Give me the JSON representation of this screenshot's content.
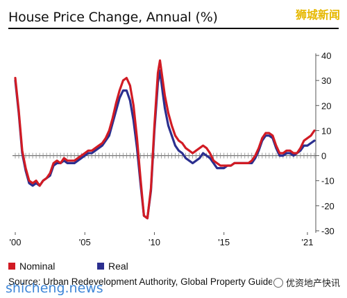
{
  "header": {
    "title": "House Price Change, Annual (%)",
    "watermark": "狮城新闻"
  },
  "footer": {
    "source": "Source: Urban Redevelopment Authority, Global Property Guide",
    "watermark_left": "shicheng.news",
    "watermark_right": "优资地产快讯"
  },
  "colors": {
    "nominal": "#d11b24",
    "real": "#2b2f8f",
    "axis": "#555555"
  },
  "chart_data": {
    "type": "line",
    "title": "House Price Change, Annual (%)",
    "xlabel": "",
    "ylabel": "",
    "xlim": [
      2000,
      2021.6
    ],
    "ylim": [
      -30,
      40
    ],
    "x_ticks": [
      {
        "x": 2000,
        "label": "'00"
      },
      {
        "x": 2005,
        "label": "'05"
      },
      {
        "x": 2010,
        "label": "'10"
      },
      {
        "x": 2015,
        "label": "'15"
      },
      {
        "x": 2021,
        "label": "'21"
      }
    ],
    "y_ticks": [
      40,
      30,
      20,
      10,
      0,
      -10,
      -20,
      -30
    ],
    "y_axis_side": "right",
    "legend": [
      {
        "name": "Nominal",
        "color": "#d11b24"
      },
      {
        "name": "Real",
        "color": "#2b2f8f"
      }
    ],
    "series": [
      {
        "name": "Nominal",
        "color": "#d11b24",
        "points": [
          [
            2000.0,
            31
          ],
          [
            2000.25,
            18
          ],
          [
            2000.5,
            2
          ],
          [
            2000.75,
            -5
          ],
          [
            2001.0,
            -10
          ],
          [
            2001.25,
            -11
          ],
          [
            2001.5,
            -10
          ],
          [
            2001.75,
            -12
          ],
          [
            2002.0,
            -10
          ],
          [
            2002.25,
            -9
          ],
          [
            2002.5,
            -7
          ],
          [
            2002.75,
            -3
          ],
          [
            2003.0,
            -2
          ],
          [
            2003.25,
            -3
          ],
          [
            2003.5,
            -1
          ],
          [
            2003.75,
            -2
          ],
          [
            2004.0,
            -2
          ],
          [
            2004.25,
            -2
          ],
          [
            2004.5,
            -1
          ],
          [
            2004.75,
            0
          ],
          [
            2005.0,
            1
          ],
          [
            2005.25,
            2
          ],
          [
            2005.5,
            2
          ],
          [
            2005.75,
            3
          ],
          [
            2006.0,
            4
          ],
          [
            2006.25,
            5
          ],
          [
            2006.5,
            7
          ],
          [
            2006.75,
            10
          ],
          [
            2007.0,
            15
          ],
          [
            2007.25,
            21
          ],
          [
            2007.5,
            26
          ],
          [
            2007.75,
            30
          ],
          [
            2008.0,
            31
          ],
          [
            2008.25,
            28
          ],
          [
            2008.5,
            20
          ],
          [
            2008.75,
            7
          ],
          [
            2009.0,
            -9
          ],
          [
            2009.25,
            -24
          ],
          [
            2009.5,
            -25
          ],
          [
            2009.75,
            -13
          ],
          [
            2010.0,
            12
          ],
          [
            2010.25,
            33
          ],
          [
            2010.4,
            38
          ],
          [
            2010.6,
            30
          ],
          [
            2010.75,
            24
          ],
          [
            2011.0,
            17
          ],
          [
            2011.25,
            12
          ],
          [
            2011.5,
            8
          ],
          [
            2011.75,
            6
          ],
          [
            2012.0,
            5
          ],
          [
            2012.25,
            3
          ],
          [
            2012.5,
            2
          ],
          [
            2012.75,
            1
          ],
          [
            2013.0,
            2
          ],
          [
            2013.25,
            3
          ],
          [
            2013.5,
            4
          ],
          [
            2013.75,
            3
          ],
          [
            2014.0,
            1
          ],
          [
            2014.25,
            -2
          ],
          [
            2014.5,
            -3
          ],
          [
            2014.75,
            -4
          ],
          [
            2015.0,
            -4
          ],
          [
            2015.25,
            -4
          ],
          [
            2015.5,
            -4
          ],
          [
            2015.75,
            -3
          ],
          [
            2016.0,
            -3
          ],
          [
            2016.25,
            -3
          ],
          [
            2016.5,
            -3
          ],
          [
            2016.75,
            -3
          ],
          [
            2017.0,
            -2
          ],
          [
            2017.25,
            0
          ],
          [
            2017.5,
            3
          ],
          [
            2017.75,
            7
          ],
          [
            2018.0,
            9
          ],
          [
            2018.25,
            9
          ],
          [
            2018.5,
            8
          ],
          [
            2018.75,
            4
          ],
          [
            2019.0,
            1
          ],
          [
            2019.25,
            1
          ],
          [
            2019.5,
            2
          ],
          [
            2019.75,
            2
          ],
          [
            2020.0,
            1
          ],
          [
            2020.25,
            1
          ],
          [
            2020.5,
            3
          ],
          [
            2020.75,
            6
          ],
          [
            2021.0,
            7
          ],
          [
            2021.25,
            8
          ],
          [
            2021.5,
            10
          ]
        ]
      },
      {
        "name": "Real",
        "color": "#2b2f8f",
        "points": [
          [
            2000.0,
            30
          ],
          [
            2000.25,
            17
          ],
          [
            2000.5,
            1
          ],
          [
            2000.75,
            -6
          ],
          [
            2001.0,
            -11
          ],
          [
            2001.25,
            -12
          ],
          [
            2001.5,
            -11
          ],
          [
            2001.75,
            -12
          ],
          [
            2002.0,
            -10
          ],
          [
            2002.25,
            -9
          ],
          [
            2002.5,
            -8
          ],
          [
            2002.75,
            -4
          ],
          [
            2003.0,
            -3
          ],
          [
            2003.25,
            -3
          ],
          [
            2003.5,
            -2
          ],
          [
            2003.75,
            -3
          ],
          [
            2004.0,
            -3
          ],
          [
            2004.25,
            -3
          ],
          [
            2004.5,
            -2
          ],
          [
            2004.75,
            -1
          ],
          [
            2005.0,
            0
          ],
          [
            2005.25,
            1
          ],
          [
            2005.5,
            1
          ],
          [
            2005.75,
            2
          ],
          [
            2006.0,
            3
          ],
          [
            2006.25,
            4
          ],
          [
            2006.5,
            6
          ],
          [
            2006.75,
            8
          ],
          [
            2007.0,
            13
          ],
          [
            2007.25,
            18
          ],
          [
            2007.5,
            23
          ],
          [
            2007.75,
            26
          ],
          [
            2008.0,
            26
          ],
          [
            2008.25,
            22
          ],
          [
            2008.5,
            14
          ],
          [
            2008.75,
            3
          ],
          [
            2009.0,
            -11
          ],
          [
            2009.25,
            -24
          ],
          [
            2009.5,
            -25
          ],
          [
            2009.75,
            -14
          ],
          [
            2010.0,
            10
          ],
          [
            2010.25,
            29
          ],
          [
            2010.4,
            34
          ],
          [
            2010.6,
            25
          ],
          [
            2010.75,
            19
          ],
          [
            2011.0,
            12
          ],
          [
            2011.25,
            8
          ],
          [
            2011.5,
            4
          ],
          [
            2011.75,
            2
          ],
          [
            2012.0,
            1
          ],
          [
            2012.25,
            -1
          ],
          [
            2012.5,
            -2
          ],
          [
            2012.75,
            -3
          ],
          [
            2013.0,
            -2
          ],
          [
            2013.25,
            -1
          ],
          [
            2013.5,
            1
          ],
          [
            2013.75,
            0
          ],
          [
            2014.0,
            -1
          ],
          [
            2014.25,
            -3
          ],
          [
            2014.5,
            -5
          ],
          [
            2014.75,
            -5
          ],
          [
            2015.0,
            -5
          ],
          [
            2015.25,
            -4
          ],
          [
            2015.5,
            -4
          ],
          [
            2015.75,
            -3
          ],
          [
            2016.0,
            -3
          ],
          [
            2016.25,
            -3
          ],
          [
            2016.5,
            -3
          ],
          [
            2016.75,
            -3
          ],
          [
            2017.0,
            -3
          ],
          [
            2017.25,
            -1
          ],
          [
            2017.5,
            2
          ],
          [
            2017.75,
            6
          ],
          [
            2018.0,
            8
          ],
          [
            2018.25,
            8
          ],
          [
            2018.5,
            7
          ],
          [
            2018.75,
            3
          ],
          [
            2019.0,
            0
          ],
          [
            2019.25,
            0
          ],
          [
            2019.5,
            1
          ],
          [
            2019.75,
            1
          ],
          [
            2020.0,
            0
          ],
          [
            2020.25,
            1
          ],
          [
            2020.5,
            2
          ],
          [
            2020.75,
            4
          ],
          [
            2021.0,
            4
          ],
          [
            2021.25,
            5
          ],
          [
            2021.5,
            6
          ]
        ]
      }
    ]
  }
}
